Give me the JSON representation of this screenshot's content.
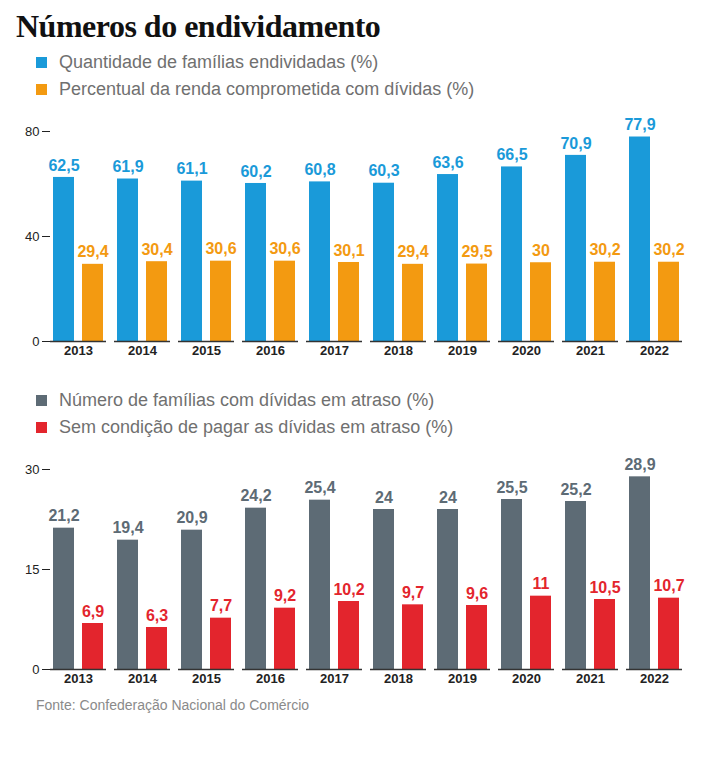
{
  "title": "Números do endividamento",
  "source": "Fonte: Confederação Nacional do Comércio",
  "chart_data": [
    {
      "type": "bar",
      "categories": [
        "2013",
        "2014",
        "2015",
        "2016",
        "2017",
        "2018",
        "2019",
        "2020",
        "2021",
        "2022"
      ],
      "series": [
        {
          "name": "Quantidade de famílias endividadas (%)",
          "color": "#1a9ad9",
          "values": [
            62.5,
            61.9,
            61.1,
            60.2,
            60.8,
            60.3,
            63.6,
            66.5,
            70.9,
            77.9
          ],
          "value_labels": [
            "62,5",
            "61,9",
            "61,1",
            "60,2",
            "60,8",
            "60,3",
            "63,6",
            "66,5",
            "70,9",
            "77,9"
          ]
        },
        {
          "name": "Percentual da renda comprometida com dívidas (%)",
          "color": "#f39a11",
          "values": [
            29.4,
            30.4,
            30.6,
            30.6,
            30.1,
            29.4,
            29.5,
            30,
            30.2,
            30.2
          ],
          "value_labels": [
            "29,4",
            "30,4",
            "30,6",
            "30,6",
            "30,1",
            "29,4",
            "29,5",
            "30",
            "30,2",
            "30,2"
          ]
        }
      ],
      "ylim": [
        0,
        80
      ],
      "yticks": [
        0,
        40,
        80
      ],
      "grid": false,
      "legend": "top-left",
      "data_labels": true
    },
    {
      "type": "bar",
      "categories": [
        "2013",
        "2014",
        "2015",
        "2016",
        "2017",
        "2018",
        "2019",
        "2020",
        "2021",
        "2022"
      ],
      "series": [
        {
          "name": "Número de famílias com dívidas em atraso (%)",
          "color": "#5d6b75",
          "values": [
            21.2,
            19.4,
            20.9,
            24.2,
            25.4,
            24,
            24,
            25.5,
            25.2,
            28.9
          ],
          "value_labels": [
            "21,2",
            "19,4",
            "20,9",
            "24,2",
            "25,4",
            "24",
            "24",
            "25,5",
            "25,2",
            "28,9"
          ]
        },
        {
          "name": "Sem condição de pagar as dívidas em atraso (%)",
          "color": "#e3252d",
          "values": [
            6.9,
            6.3,
            7.7,
            9.2,
            10.2,
            9.7,
            9.6,
            11,
            10.5,
            10.7
          ],
          "value_labels": [
            "6,9",
            "6,3",
            "7,7",
            "9,2",
            "10,2",
            "9,7",
            "9,6",
            "11",
            "10,5",
            "10,7"
          ]
        }
      ],
      "ylim": [
        0,
        30
      ],
      "yticks": [
        0,
        15,
        30
      ],
      "grid": false,
      "legend": "top-left",
      "data_labels": true
    }
  ]
}
